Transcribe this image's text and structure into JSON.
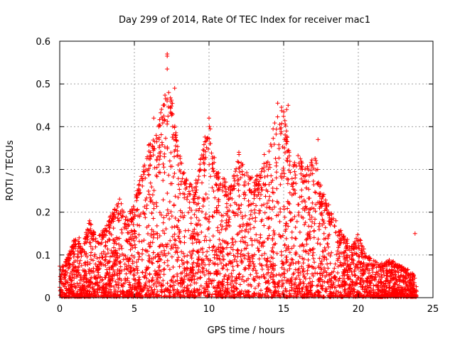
{
  "chart_data": {
    "type": "scatter",
    "title": "Day 299 of 2014, Rate Of TEC Index for receiver mac1",
    "xlabel": "GPS time / hours",
    "ylabel": "ROTI / TECUs",
    "xlim": [
      0,
      25
    ],
    "ylim": [
      0,
      0.6
    ],
    "x_ticks": [
      0,
      5,
      10,
      15,
      20,
      25
    ],
    "y_ticks": [
      0,
      0.1,
      0.2,
      0.3,
      0.4,
      0.5,
      0.6
    ],
    "x_tick_labels": [
      "0",
      "5",
      "10",
      "15",
      "20",
      "25"
    ],
    "y_tick_labels": [
      "0",
      "0.1",
      "0.2",
      "0.3",
      "0.4",
      "0.5",
      "0.6"
    ],
    "grid": true,
    "marker": "+",
    "series_color": "#ff0000",
    "envelope_description": "dense cloud of + markers; upper envelope of ROTI vs hour estimated from the plot",
    "envelope": [
      [
        0.0,
        0.08
      ],
      [
        0.5,
        0.09
      ],
      [
        1.0,
        0.14
      ],
      [
        1.5,
        0.12
      ],
      [
        2.0,
        0.18
      ],
      [
        2.5,
        0.14
      ],
      [
        3.0,
        0.16
      ],
      [
        3.5,
        0.2
      ],
      [
        4.0,
        0.23
      ],
      [
        4.5,
        0.19
      ],
      [
        5.0,
        0.22
      ],
      [
        5.5,
        0.3
      ],
      [
        6.0,
        0.36
      ],
      [
        6.5,
        0.4
      ],
      [
        7.0,
        0.48
      ],
      [
        7.5,
        0.48
      ],
      [
        8.0,
        0.34
      ],
      [
        8.5,
        0.28
      ],
      [
        9.0,
        0.26
      ],
      [
        9.5,
        0.34
      ],
      [
        10.0,
        0.42
      ],
      [
        10.5,
        0.3
      ],
      [
        11.0,
        0.28
      ],
      [
        11.5,
        0.26
      ],
      [
        12.0,
        0.34
      ],
      [
        12.5,
        0.3
      ],
      [
        13.0,
        0.28
      ],
      [
        13.5,
        0.3
      ],
      [
        14.0,
        0.34
      ],
      [
        14.5,
        0.44
      ],
      [
        15.0,
        0.45
      ],
      [
        15.5,
        0.3
      ],
      [
        16.0,
        0.34
      ],
      [
        16.5,
        0.3
      ],
      [
        17.0,
        0.35
      ],
      [
        17.5,
        0.26
      ],
      [
        18.0,
        0.22
      ],
      [
        18.5,
        0.17
      ],
      [
        19.0,
        0.15
      ],
      [
        19.5,
        0.12
      ],
      [
        20.0,
        0.15
      ],
      [
        20.5,
        0.1
      ],
      [
        21.0,
        0.09
      ],
      [
        21.5,
        0.08
      ],
      [
        22.0,
        0.09
      ],
      [
        22.5,
        0.08
      ],
      [
        23.0,
        0.07
      ],
      [
        23.5,
        0.06
      ],
      [
        23.9,
        0.05
      ]
    ],
    "notable_points": [
      {
        "x": 7.2,
        "y": 0.57
      },
      {
        "x": 7.2,
        "y": 0.565
      },
      {
        "x": 7.2,
        "y": 0.535
      },
      {
        "x": 7.7,
        "y": 0.49
      },
      {
        "x": 7.3,
        "y": 0.48
      },
      {
        "x": 10.0,
        "y": 0.42
      },
      {
        "x": 14.6,
        "y": 0.455
      },
      {
        "x": 15.3,
        "y": 0.45
      },
      {
        "x": 15.2,
        "y": 0.44
      },
      {
        "x": 23.8,
        "y": 0.15
      },
      {
        "x": 2.0,
        "y": 0.18
      },
      {
        "x": 18.5,
        "y": 0.18
      },
      {
        "x": 1.3,
        "y": 0.14
      },
      {
        "x": 12.0,
        "y": 0.34
      },
      {
        "x": 13.7,
        "y": 0.335
      },
      {
        "x": 17.3,
        "y": 0.37
      },
      {
        "x": 6.3,
        "y": 0.42
      }
    ]
  }
}
